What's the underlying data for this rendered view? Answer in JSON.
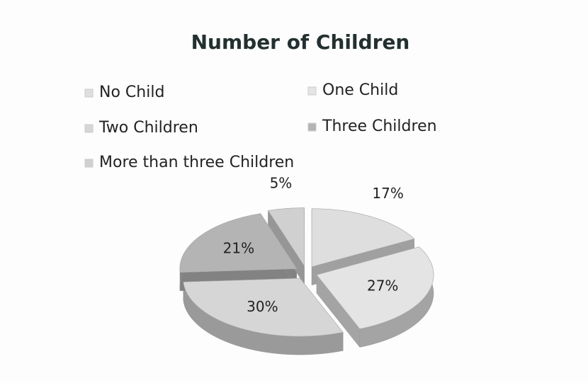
{
  "chart_data": {
    "type": "pie",
    "title": "Number of Children",
    "categories": [
      "No Child",
      "One Child",
      "Two Children",
      "Three Children",
      "More than three Children"
    ],
    "values": [
      17,
      27,
      30,
      21,
      5
    ],
    "value_labels": [
      "17%",
      "27%",
      "30%",
      "21%",
      "5%"
    ],
    "colors": [
      "#dedede",
      "#e4e4e4",
      "#d6d6d6",
      "#b4b4b4",
      "#d0d0d0"
    ],
    "legend": "top"
  }
}
